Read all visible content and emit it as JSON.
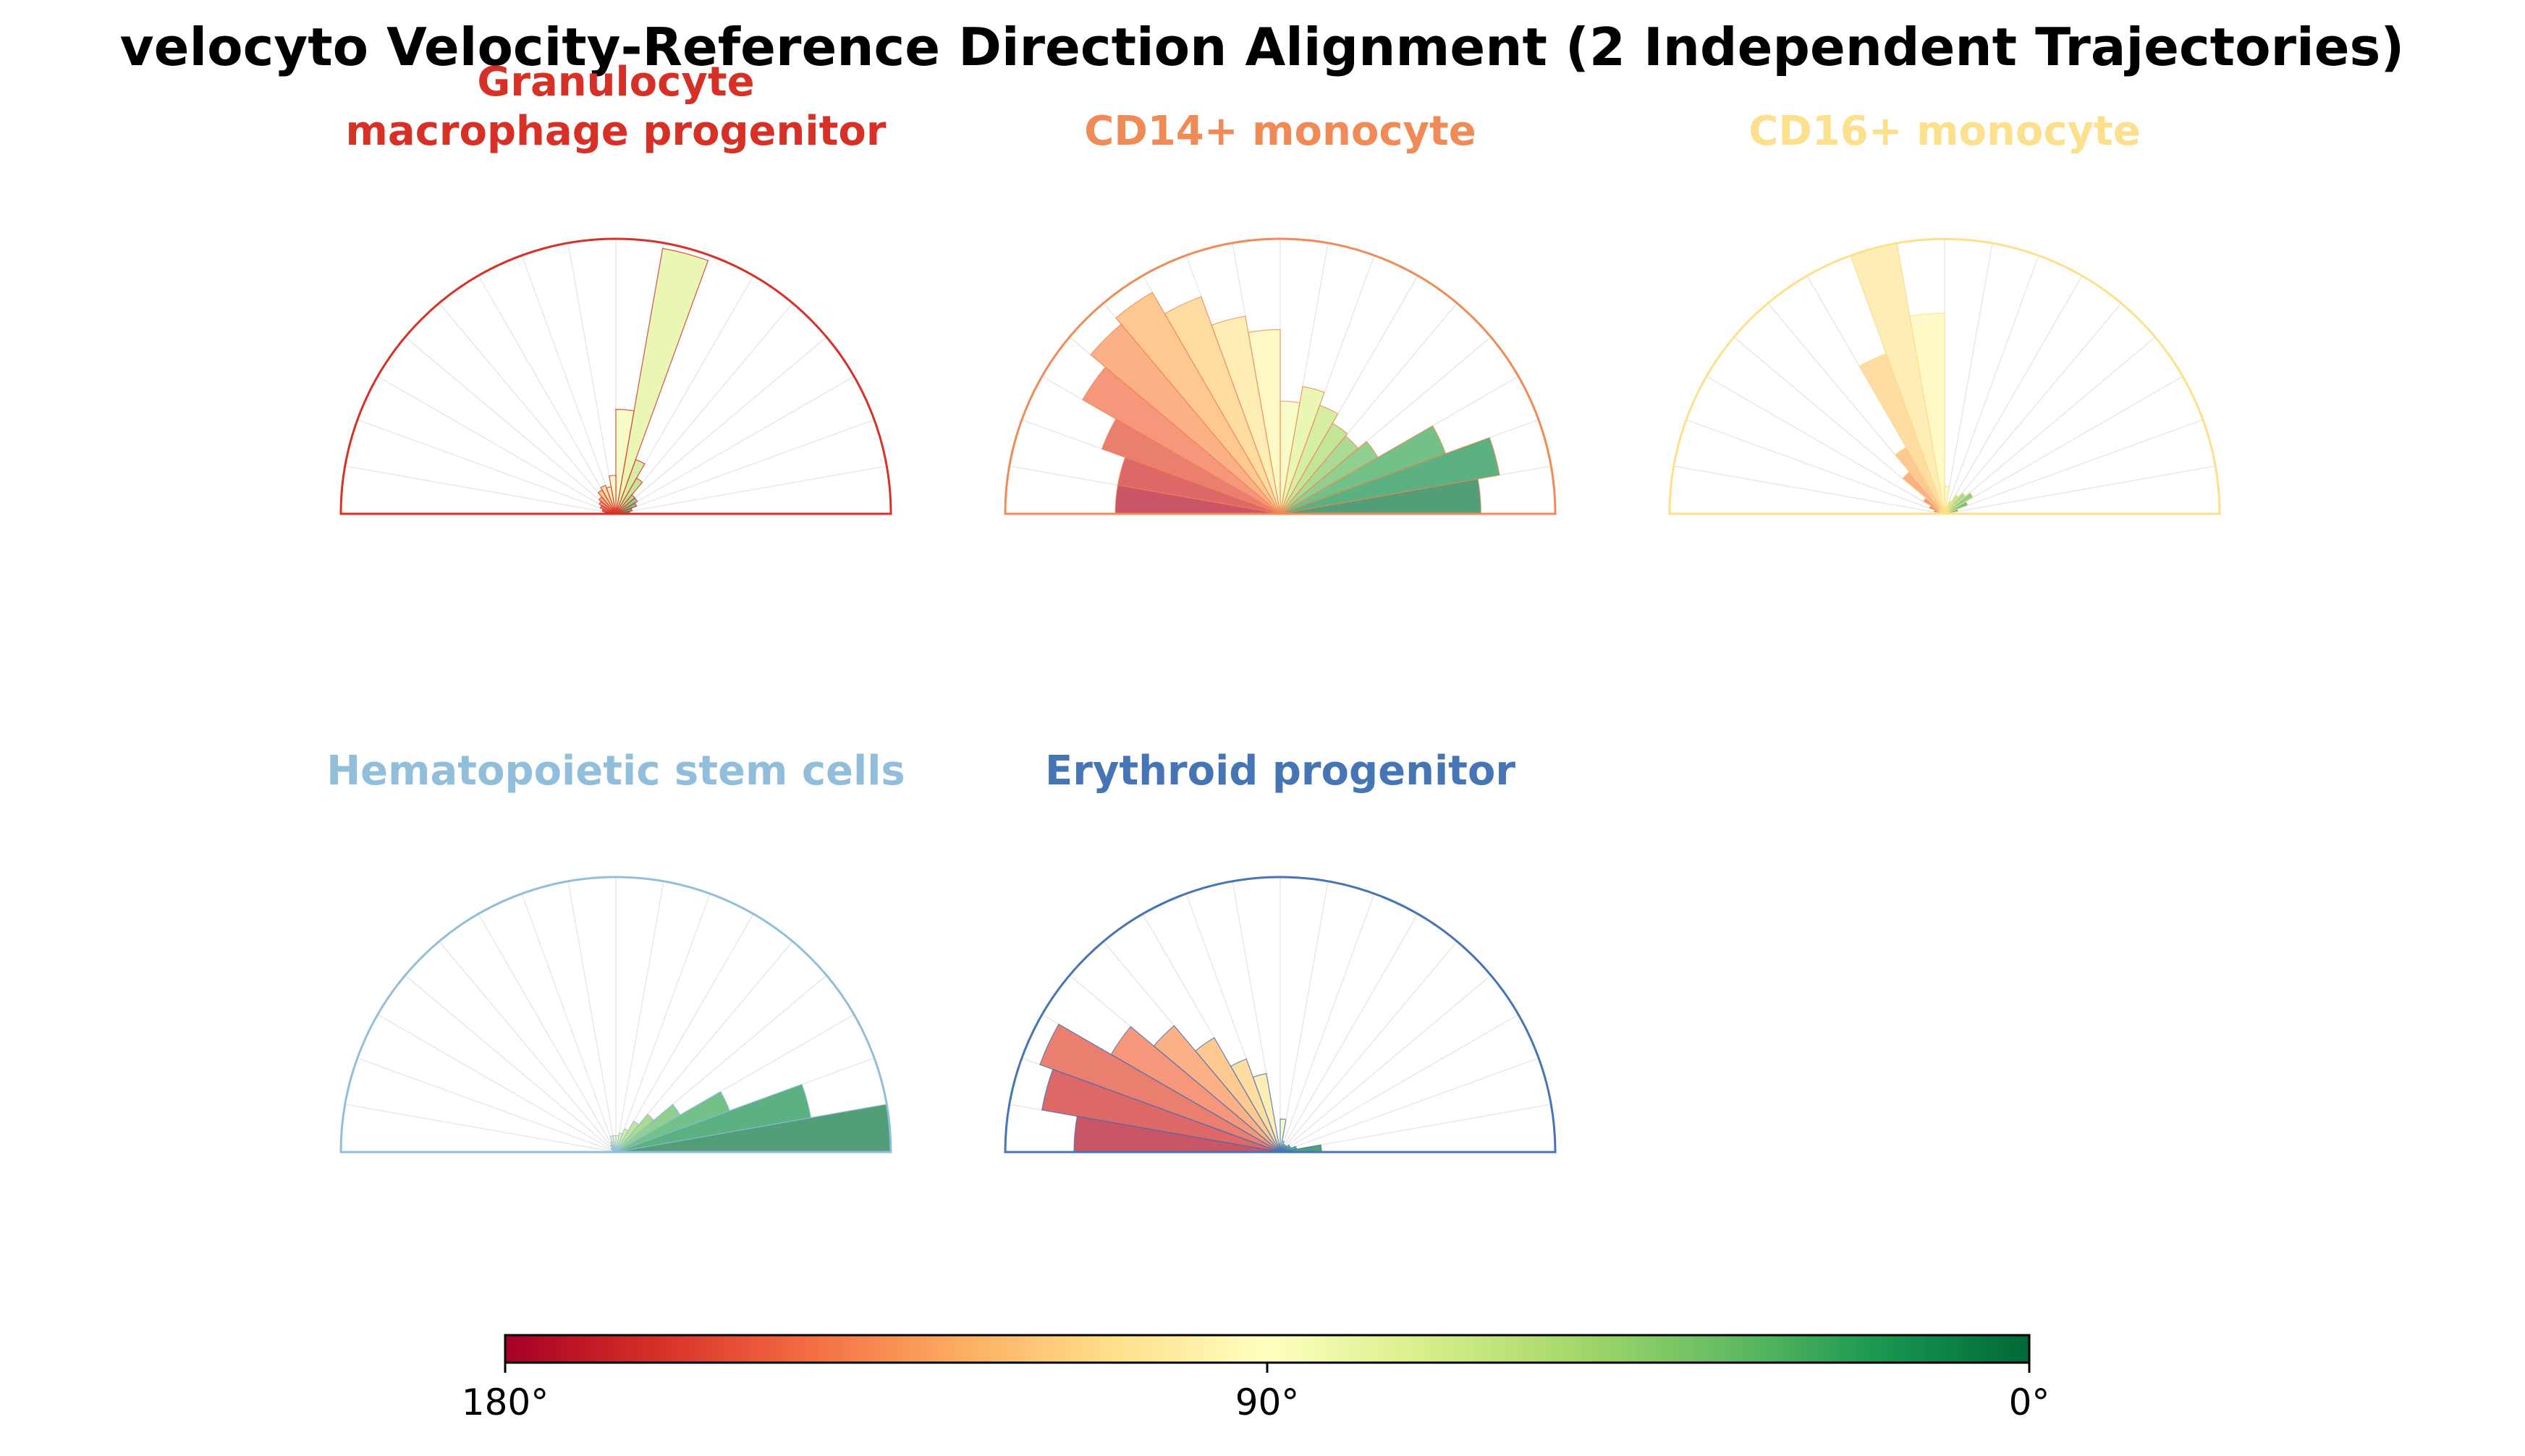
{
  "chart_data": {
    "type": "polar-histogram",
    "title": "velocyto Velocity-Reference Direction Alignment (2 Independent Trajectories)",
    "bin_count": 18,
    "bin_width_deg": 10,
    "theta_range_deg": [
      0,
      180
    ],
    "bin_centers_deg": [
      5,
      15,
      25,
      35,
      45,
      55,
      65,
      75,
      85,
      95,
      105,
      115,
      125,
      135,
      145,
      155,
      165,
      175
    ],
    "grid": true,
    "panels": [
      {
        "name": "Granulocyte macrophage progenitor",
        "title_lines": [
          "Granulocyte",
          "macrophage progenitor"
        ],
        "color": "#d73027",
        "values": [
          0.05,
          0.06,
          0.08,
          0.09,
          0.09,
          0.15,
          0.21,
          0.98,
          0.38,
          0.14,
          0.1,
          0.11,
          0.1,
          0.08,
          0.07,
          0.06,
          0.05,
          0.04
        ]
      },
      {
        "name": "CD14+ monocyte",
        "title_lines": [
          "CD14+ monocyte"
        ],
        "color": "#f08b57",
        "values": [
          0.73,
          0.81,
          0.64,
          0.41,
          0.37,
          0.38,
          0.42,
          0.47,
          0.41,
          0.67,
          0.73,
          0.84,
          0.93,
          0.9,
          0.83,
          0.69,
          0.6,
          0.6
        ]
      },
      {
        "name": "CD16+ monocyte",
        "title_lines": [
          "CD16+ monocyte"
        ],
        "color": "#fde08b",
        "values": [
          0.03,
          0.05,
          0.09,
          0.12,
          0.1,
          0.08,
          0.05,
          0.03,
          0.1,
          0.73,
          1.0,
          0.62,
          0.28,
          0.2,
          0.09,
          0.06,
          0.04,
          0.03
        ]
      },
      {
        "name": "Hematopoietic stem cells",
        "title_lines": [
          "Hematopoietic stem cells"
        ],
        "color": "#91bfdb",
        "values": [
          1.0,
          0.72,
          0.44,
          0.27,
          0.18,
          0.13,
          0.09,
          0.07,
          0.06,
          0.06,
          0.06,
          0.04,
          0.03,
          0.02,
          0.02,
          0.01,
          0.01,
          0.01
        ]
      },
      {
        "name": "Erythroid progenitor",
        "title_lines": [
          "Erythroid progenitor"
        ],
        "color": "#4575b4",
        "values": [
          0.15,
          0.06,
          0.04,
          0.04,
          0.03,
          0.03,
          0.03,
          0.04,
          0.12,
          0.03,
          0.29,
          0.36,
          0.48,
          0.6,
          0.71,
          0.93,
          0.88,
          0.75
        ]
      }
    ],
    "colorbar": {
      "colormap": "RdYlGn",
      "ticks": [
        "180°",
        "90°",
        "0°"
      ],
      "range_deg": [
        180,
        0
      ],
      "orientation": "horizontal",
      "stops": [
        "#a50026",
        "#d73027",
        "#f46d43",
        "#fdae61",
        "#fee08b",
        "#ffffbf",
        "#d9ef8b",
        "#a6d96a",
        "#66bd63",
        "#1a9850",
        "#006837"
      ]
    },
    "styles": {
      "grid_color": "#e8e8e8",
      "bar_alpha": 0.7,
      "text_color": "#000000"
    }
  }
}
